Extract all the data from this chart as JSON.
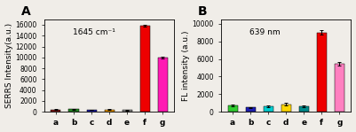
{
  "chart_A": {
    "title": "A",
    "annotation": "1645 cm⁻¹",
    "ylabel": "SERRS Intensity(a.u.)",
    "categories": [
      "a",
      "b",
      "c",
      "d",
      "e",
      "f",
      "g"
    ],
    "values": [
      380,
      430,
      330,
      400,
      280,
      15800,
      9900
    ],
    "errors": [
      70,
      70,
      60,
      70,
      55,
      180,
      180
    ],
    "colors": [
      "#8B1A1A",
      "#228B22",
      "#1C1CB0",
      "#FFA500",
      "#909090",
      "#EE0000",
      "#FF1AB3"
    ],
    "ylim": [
      0,
      17000
    ],
    "yticks": [
      0,
      2000,
      4000,
      6000,
      8000,
      10000,
      12000,
      14000,
      16000
    ]
  },
  "chart_B": {
    "title": "B",
    "annotation": "639 nm",
    "ylabel": "FL intensity (a.u.)",
    "categories": [
      "a",
      "b",
      "c",
      "d",
      "e",
      "f",
      "g"
    ],
    "values": [
      680,
      480,
      640,
      860,
      610,
      9000,
      5450
    ],
    "errors": [
      110,
      75,
      90,
      120,
      90,
      230,
      190
    ],
    "colors": [
      "#32CD32",
      "#1E1EB4",
      "#00CED1",
      "#FFD700",
      "#008B8B",
      "#EE0000",
      "#FF80C0"
    ],
    "ylim": [
      0,
      10500
    ],
    "yticks": [
      0,
      2000,
      4000,
      6000,
      8000,
      10000
    ]
  },
  "figure_bg": "#F0EDE8",
  "axes_bg": "#F0EDE8",
  "bar_width": 0.55,
  "fontsize_title": 8,
  "fontsize_label": 6.5,
  "fontsize_tick": 5.5,
  "fontsize_annot": 6.5
}
